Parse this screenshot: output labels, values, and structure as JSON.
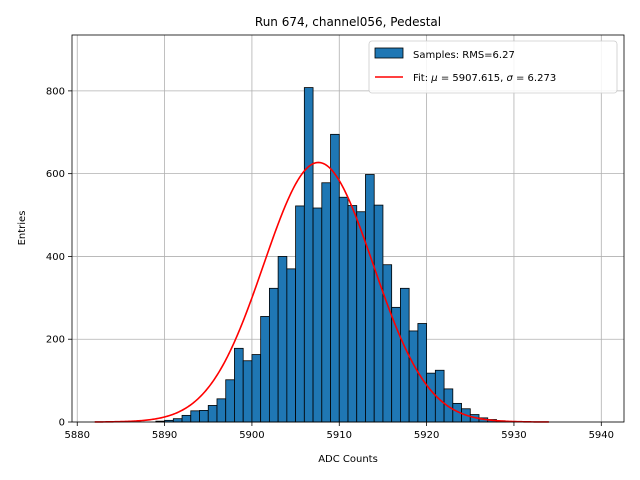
{
  "chart_data": {
    "type": "bar",
    "title": "Run 674, channel056, Pedestal",
    "xlabel": "ADC Counts",
    "ylabel": "Entries",
    "xlim": [
      5879.4,
      5942.6
    ],
    "ylim": [
      0,
      935
    ],
    "grid": true,
    "legend_position": "top-right",
    "xticks": [
      5880,
      5890,
      5900,
      5910,
      5920,
      5930,
      5940
    ],
    "yticks": [
      0,
      200,
      400,
      600,
      800
    ],
    "histogram": {
      "name": "Samples: RMS=6.27",
      "color": "#1f77b4",
      "edge_color": "#000000",
      "bin_start": 5882,
      "bin_width": 1,
      "counts": [
        0,
        0,
        0,
        0,
        0,
        0,
        0,
        2,
        4,
        8,
        16,
        27,
        28,
        40,
        56,
        102,
        178,
        148,
        163,
        255,
        323,
        400,
        370,
        522,
        808,
        517,
        578,
        695,
        543,
        523,
        508,
        598,
        524,
        380,
        277,
        323,
        220,
        238,
        118,
        125,
        80,
        45,
        32,
        18,
        10,
        6,
        3,
        1,
        0,
        0,
        0,
        0
      ]
    },
    "fit": {
      "name": "Fit: μ = 5907.615, σ = 6.273",
      "label_prefix": "Fit: ",
      "label_mu_symbol": "μ",
      "label_mu_value": " = 5907.615, ",
      "label_sigma_symbol": "σ",
      "label_sigma_value": " = 6.273",
      "color": "#ff0000",
      "mu": 5907.615,
      "sigma": 6.273,
      "amplitude": 627,
      "x_range": [
        5882,
        5934
      ]
    }
  }
}
